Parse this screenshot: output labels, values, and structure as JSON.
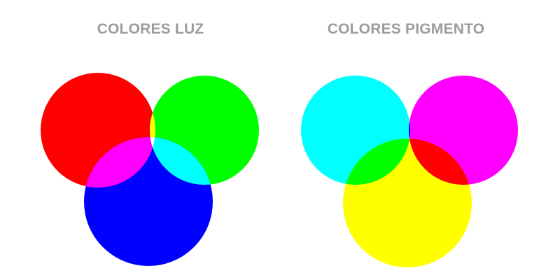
{
  "light": {
    "title": "COLORES LUZ",
    "colors": {
      "red": "#ff0000",
      "green": "#00ff00",
      "blue": "#0000ff",
      "yellow": "#ffff00",
      "magenta": "#ff00ff",
      "cyan": "#00ffff",
      "white": "#ffffff"
    }
  },
  "pigment": {
    "title": "COLORES PIGMENTO",
    "colors": {
      "cyan": "#00ffff",
      "magenta": "#ff00ff",
      "yellow": "#ffff00",
      "blue": "#0000ff",
      "green": "#00ff00",
      "red": "#ff0000",
      "black": "#000000"
    }
  }
}
